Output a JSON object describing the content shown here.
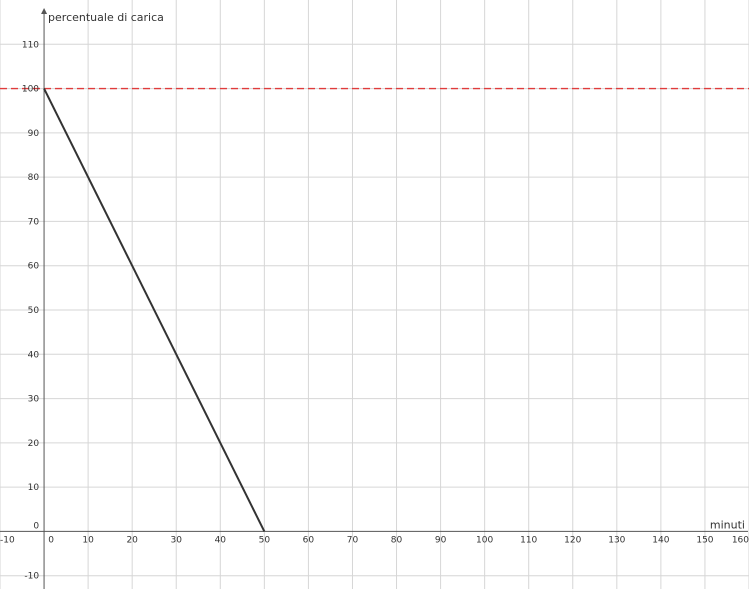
{
  "chart_data": {
    "type": "line",
    "xlabel": "minuti",
    "ylabel": "percentuale di carica",
    "xlim": [
      -10,
      160
    ],
    "ylim": [
      -13,
      120
    ],
    "x_ticks": [
      -10,
      0,
      10,
      20,
      30,
      40,
      50,
      60,
      70,
      80,
      90,
      100,
      110,
      120,
      130,
      140,
      150,
      160
    ],
    "y_ticks": [
      -10,
      0,
      10,
      20,
      30,
      40,
      50,
      60,
      70,
      80,
      90,
      100,
      110
    ],
    "grid": true,
    "series": [
      {
        "x": [
          0,
          50
        ],
        "y": [
          100,
          0
        ],
        "color": "#333333",
        "style": "solid"
      }
    ],
    "reference_lines": [
      {
        "y": 100,
        "color": "#e03c3c",
        "style": "dashed"
      }
    ]
  }
}
